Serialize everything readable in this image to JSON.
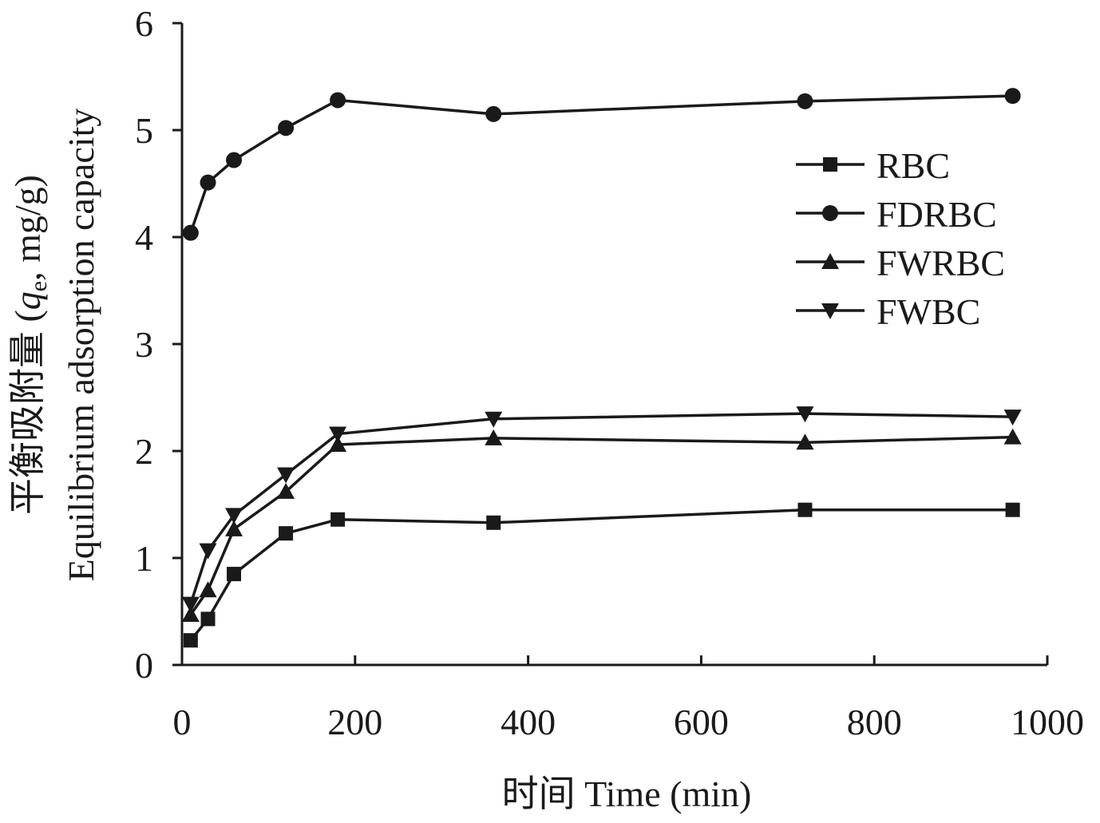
{
  "chart_data": {
    "type": "line",
    "xlabel": "时间 Time (min)",
    "ylabel_line1": "平衡吸附量 (",
    "ylabel_q": "q",
    "ylabel_sub": "e",
    "ylabel_line1_tail": ", mg/g)",
    "ylabel_line2": "Equilibrium adsorption capacity",
    "xlim": [
      0,
      1000
    ],
    "ylim": [
      0,
      6
    ],
    "xticks": [
      0,
      200,
      400,
      600,
      800,
      1000
    ],
    "yticks": [
      0,
      1,
      2,
      3,
      4,
      5,
      6
    ],
    "grid": false,
    "legend_position": "top-right",
    "x": [
      10,
      30,
      60,
      120,
      180,
      360,
      720,
      960
    ],
    "series": [
      {
        "name": "RBC",
        "marker": "square",
        "values": [
          0.23,
          0.43,
          0.85,
          1.23,
          1.36,
          1.33,
          1.45,
          1.45
        ]
      },
      {
        "name": "FDRBC",
        "marker": "circle",
        "values": [
          4.04,
          4.51,
          4.72,
          5.02,
          5.28,
          5.15,
          5.27,
          5.32
        ]
      },
      {
        "name": "FWRBC",
        "marker": "triangle-up",
        "values": [
          0.47,
          0.7,
          1.27,
          1.62,
          2.06,
          2.12,
          2.08,
          2.13
        ]
      },
      {
        "name": "FWBC",
        "marker": "triangle-down",
        "values": [
          0.57,
          1.07,
          1.4,
          1.78,
          2.16,
          2.3,
          2.35,
          2.32
        ]
      }
    ],
    "colors": {
      "line": "#1a1a1a",
      "background": "#ffffff"
    }
  }
}
